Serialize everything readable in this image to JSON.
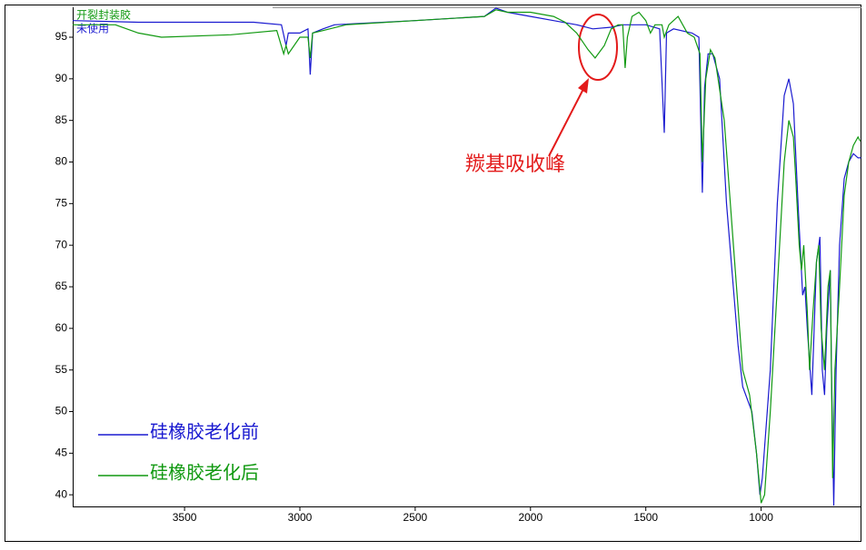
{
  "chart_data": {
    "type": "line",
    "corner_labels": [
      {
        "text": "开裂封装胶",
        "color": "#119911"
      },
      {
        "text": "未使用",
        "color": "#1a1ad0"
      }
    ],
    "annotation": "羰基吸收峰",
    "annotation_color": "#e31a1a",
    "xlim": [
      3985,
      565
    ],
    "ylim": [
      38.6,
      98.6
    ],
    "xticks": [
      3500,
      3000,
      2500,
      2000,
      1500,
      1000
    ],
    "yticks": [
      40,
      45,
      50,
      55,
      60,
      65,
      70,
      75,
      80,
      85,
      90,
      95
    ],
    "series": [
      {
        "name": "硅橡胶老化前",
        "color": "#1a1ad0",
        "x": [
          3985,
          3700,
          3500,
          3200,
          3080,
          3060,
          3050,
          3000,
          2965,
          2960,
          2955,
          2945,
          2900,
          2850,
          2500,
          2200,
          2150,
          2100,
          2000,
          1900,
          1800,
          1730,
          1650,
          1600,
          1500,
          1440,
          1420,
          1410,
          1380,
          1300,
          1270,
          1255,
          1245,
          1230,
          1210,
          1180,
          1150,
          1100,
          1080,
          1040,
          1020,
          1005,
          995,
          960,
          930,
          900,
          880,
          860,
          840,
          820,
          810,
          800,
          780,
          760,
          745,
          735,
          725,
          715,
          700,
          695,
          685,
          675,
          660,
          640,
          620,
          600,
          580,
          567
        ],
        "values": [
          97,
          96.8,
          96.8,
          96.8,
          96.5,
          94,
          95.5,
          95.5,
          96,
          93.5,
          90.5,
          95.5,
          96,
          96.5,
          97,
          97.5,
          98.5,
          98,
          97.5,
          97,
          96.5,
          96,
          96.2,
          96.5,
          96.5,
          96,
          83.5,
          95.5,
          96,
          95.5,
          95,
          76.3,
          89,
          93,
          93,
          90,
          75,
          58,
          53,
          50,
          45,
          40,
          42,
          55,
          75,
          88,
          90,
          87,
          75,
          64,
          65,
          60,
          52,
          68,
          71,
          55,
          52,
          60,
          67,
          55,
          38.7,
          55,
          70,
          78,
          80,
          81,
          80.5,
          80.5
        ]
      },
      {
        "name": "硅橡胶老化后",
        "color": "#119911",
        "x": [
          3985,
          3800,
          3700,
          3600,
          3300,
          3100,
          3070,
          3060,
          3050,
          3000,
          2965,
          2955,
          2945,
          2900,
          2800,
          2500,
          2200,
          2150,
          2100,
          2000,
          1900,
          1850,
          1800,
          1750,
          1720,
          1680,
          1650,
          1620,
          1600,
          1590,
          1580,
          1560,
          1530,
          1500,
          1480,
          1460,
          1430,
          1420,
          1400,
          1360,
          1320,
          1290,
          1265,
          1255,
          1240,
          1220,
          1200,
          1160,
          1120,
          1080,
          1050,
          1020,
          1000,
          985,
          960,
          930,
          900,
          880,
          860,
          850,
          835,
          825,
          815,
          800,
          790,
          775,
          760,
          750,
          740,
          725,
          710,
          700,
          690,
          680,
          660,
          640,
          620,
          600,
          580,
          570
        ],
        "values": [
          96.5,
          96.5,
          95.5,
          95,
          95.3,
          95.8,
          93,
          94,
          93,
          95,
          95,
          92.5,
          95.5,
          95.8,
          96.5,
          97,
          97.5,
          98.3,
          98,
          98,
          97.5,
          96.8,
          95.5,
          93.5,
          92.5,
          94,
          96,
          96.5,
          96.5,
          91.3,
          95,
          97.5,
          98,
          97,
          95.5,
          96.5,
          96.5,
          95,
          96.5,
          97.5,
          95.5,
          95,
          93,
          80,
          90,
          93.5,
          92.5,
          85,
          70,
          55,
          52,
          45,
          39,
          40,
          50,
          65,
          80,
          85,
          83,
          78,
          70,
          67,
          70,
          62,
          55,
          62,
          68,
          70,
          60,
          55,
          65,
          67,
          42,
          55,
          65,
          76,
          80,
          82,
          83,
          82.5
        ]
      }
    ]
  }
}
